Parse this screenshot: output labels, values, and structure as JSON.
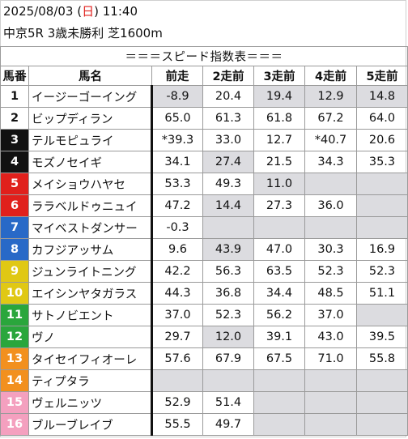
{
  "header": {
    "date": "2025/08/03",
    "day_open": "(",
    "day": "日",
    "day_close": ")",
    "time": "11:40",
    "race": "中京5R 3歳未勝利 芝1600m"
  },
  "table": {
    "title": "＝＝＝スピード指数表＝＝＝",
    "columns": [
      "馬番",
      "馬名",
      "前走",
      "2走前",
      "3走前",
      "4走前",
      "5走前"
    ],
    "rows": [
      {
        "num": "1",
        "name": "イージーゴーイング",
        "frame": 1,
        "values": [
          "-8.9",
          "20.4",
          "19.4",
          "12.9",
          "14.8"
        ]
      },
      {
        "num": "2",
        "name": "ビップディラン",
        "frame": 1,
        "values": [
          "65.0",
          "61.3",
          "61.8",
          "67.2",
          "64.0"
        ]
      },
      {
        "num": "3",
        "name": "テルモピュライ",
        "frame": 2,
        "values": [
          "*39.3",
          "33.0",
          "12.7",
          "*40.7",
          "20.6"
        ]
      },
      {
        "num": "4",
        "name": "モズノセイギ",
        "frame": 2,
        "values": [
          "34.1",
          "27.4",
          "21.5",
          "34.3",
          "35.3"
        ]
      },
      {
        "num": "5",
        "name": "メイショウハヤセ",
        "frame": 3,
        "values": [
          "53.3",
          "49.3",
          "11.0",
          "",
          ""
        ]
      },
      {
        "num": "6",
        "name": "ララベルドゥニュイ",
        "frame": 3,
        "values": [
          "47.2",
          "14.4",
          "27.3",
          "36.0",
          ""
        ]
      },
      {
        "num": "7",
        "name": "マイベストダンサー",
        "frame": 4,
        "values": [
          "-0.3",
          "",
          "",
          "",
          ""
        ]
      },
      {
        "num": "8",
        "name": "カフジアッサム",
        "frame": 4,
        "values": [
          "9.6",
          "43.9",
          "47.0",
          "30.3",
          "16.9"
        ]
      },
      {
        "num": "9",
        "name": "ジュンライトニング",
        "frame": 5,
        "values": [
          "42.2",
          "56.3",
          "63.5",
          "52.3",
          "52.3"
        ]
      },
      {
        "num": "10",
        "name": "エイシンヤタガラス",
        "frame": 5,
        "values": [
          "44.3",
          "36.8",
          "34.4",
          "48.5",
          "51.1"
        ]
      },
      {
        "num": "11",
        "name": "サトノビエント",
        "frame": 6,
        "values": [
          "37.0",
          "52.3",
          "56.2",
          "37.0",
          ""
        ]
      },
      {
        "num": "12",
        "name": "ヴノ",
        "frame": 6,
        "values": [
          "29.7",
          "12.0",
          "39.1",
          "43.0",
          "39.5"
        ]
      },
      {
        "num": "13",
        "name": "タイセイフィオーレ",
        "frame": 7,
        "values": [
          "57.6",
          "67.9",
          "67.5",
          "71.0",
          "55.8"
        ]
      },
      {
        "num": "14",
        "name": "ティプタラ",
        "frame": 7,
        "values": [
          "",
          "",
          "",
          "",
          ""
        ]
      },
      {
        "num": "15",
        "name": "ヴェルニッツ",
        "frame": 8,
        "values": [
          "52.9",
          "51.4",
          "",
          "",
          ""
        ]
      },
      {
        "num": "16",
        "name": "ブルーブレイブ",
        "frame": 8,
        "values": [
          "55.5",
          "49.7",
          "",
          "",
          ""
        ]
      }
    ],
    "shading": [
      [
        true,
        false,
        true,
        true,
        true
      ],
      [
        false,
        false,
        false,
        false,
        false
      ],
      [
        false,
        false,
        false,
        false,
        false
      ],
      [
        false,
        true,
        false,
        false,
        false
      ],
      [
        false,
        false,
        true,
        true,
        true
      ],
      [
        false,
        true,
        false,
        false,
        true
      ],
      [
        false,
        true,
        true,
        true,
        true
      ],
      [
        false,
        true,
        false,
        false,
        false
      ],
      [
        false,
        false,
        false,
        false,
        false
      ],
      [
        false,
        false,
        false,
        false,
        false
      ],
      [
        false,
        false,
        false,
        false,
        true
      ],
      [
        false,
        true,
        false,
        false,
        false
      ],
      [
        false,
        false,
        false,
        false,
        false
      ],
      [
        true,
        true,
        true,
        true,
        true
      ],
      [
        false,
        false,
        true,
        true,
        true
      ],
      [
        false,
        false,
        true,
        true,
        true
      ]
    ],
    "frame_colors": {
      "1": "#ffffff",
      "2": "#111111",
      "3": "#e0201c",
      "4": "#2869c7",
      "5": "#e0c814",
      "6": "#2aa63c",
      "7": "#f2901e",
      "8": "#f4a0bf"
    }
  }
}
